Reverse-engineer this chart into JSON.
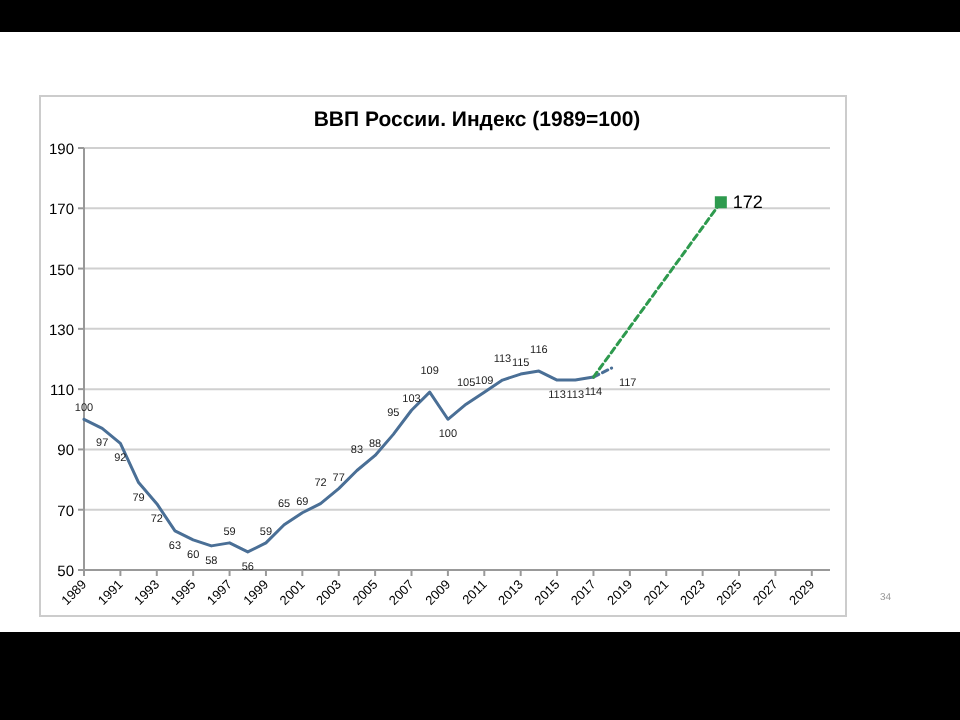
{
  "chart_data": {
    "type": "line",
    "title": "ВВП России. Индекс (1989=100)",
    "xlim": [
      1989,
      2030
    ],
    "xticks": [
      1989,
      1991,
      1993,
      1995,
      1997,
      1999,
      2001,
      2003,
      2005,
      2007,
      2009,
      2011,
      2013,
      2015,
      2017,
      2019,
      2021,
      2023,
      2025,
      2027,
      2029
    ],
    "ylim": [
      50,
      190
    ],
    "yticks": [
      50,
      70,
      90,
      110,
      130,
      150,
      170,
      190
    ],
    "grid": "y",
    "annotations": [
      "34"
    ],
    "series": [
      {
        "color": "#4a6f96",
        "line_style": "solid",
        "marker": "none",
        "x": [
          1989,
          1990,
          1991,
          1992,
          1993,
          1994,
          1995,
          1996,
          1997,
          1998,
          1999,
          2000,
          2001,
          2002,
          2003,
          2004,
          2005,
          2006,
          2007,
          2008,
          2009,
          2010,
          2011,
          2012,
          2013,
          2014,
          2015,
          2016,
          2017
        ],
        "values": [
          100,
          97,
          92,
          79,
          72,
          63,
          60,
          58,
          59,
          56,
          59,
          65,
          69,
          72,
          77,
          83,
          88,
          95,
          103,
          109,
          100,
          105,
          109,
          113,
          115,
          116,
          113,
          113,
          114
        ],
        "value_labels": [
          "100",
          "97",
          "92",
          "79",
          "72",
          "63",
          "60",
          "58",
          "59",
          "56",
          "59",
          "65",
          "69",
          "72",
          "77",
          "83",
          "88",
          "95",
          "103",
          "109",
          "100",
          "105",
          "109",
          "113",
          "115",
          "116",
          "113",
          "113",
          "114"
        ]
      },
      {
        "color": "#4a6f96",
        "line_style": "dashed",
        "marker": "none",
        "x": [
          2017,
          2018
        ],
        "values": [
          114,
          117
        ],
        "value_labels": [
          null,
          "117"
        ]
      },
      {
        "color": "#2e9a4e",
        "line_style": "dashed",
        "marker": "square",
        "x": [
          2017,
          2024
        ],
        "values": [
          114,
          172
        ],
        "value_labels": [
          null,
          "172"
        ]
      }
    ]
  }
}
